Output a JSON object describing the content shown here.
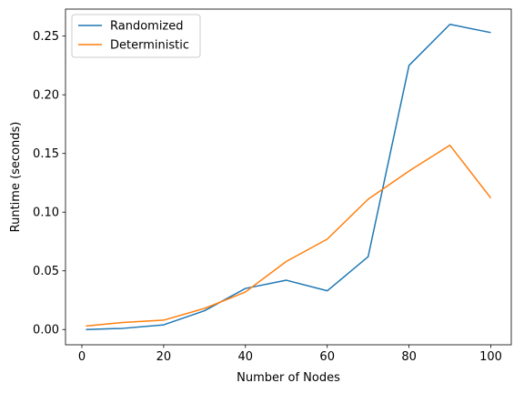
{
  "chart_data": {
    "type": "line",
    "title": "",
    "xlabel": "Number of Nodes",
    "ylabel": "Runtime (seconds)",
    "xlim": [
      -4,
      105
    ],
    "ylim": [
      -0.013,
      0.273
    ],
    "x_ticks": [
      0,
      20,
      40,
      60,
      80,
      100
    ],
    "y_ticks": [
      0.0,
      0.05,
      0.1,
      0.15,
      0.2,
      0.25
    ],
    "x_tick_labels": [
      "0",
      "20",
      "40",
      "60",
      "80",
      "100"
    ],
    "y_tick_labels": [
      "0.00",
      "0.05",
      "0.10",
      "0.15",
      "0.20",
      "0.25"
    ],
    "grid": false,
    "legend_position": "top-left",
    "x": [
      1,
      10,
      20,
      30,
      40,
      50,
      60,
      70,
      80,
      90,
      100
    ],
    "series": [
      {
        "name": "Randomized",
        "color": "#1f77b4",
        "values": [
          0.0,
          0.001,
          0.004,
          0.016,
          0.035,
          0.042,
          0.033,
          0.062,
          0.225,
          0.26,
          0.253
        ]
      },
      {
        "name": "Deterministic",
        "color": "#ff7f0e",
        "values": [
          0.003,
          0.006,
          0.008,
          0.018,
          0.032,
          0.058,
          0.077,
          0.111,
          0.135,
          0.157,
          0.112
        ]
      }
    ]
  }
}
